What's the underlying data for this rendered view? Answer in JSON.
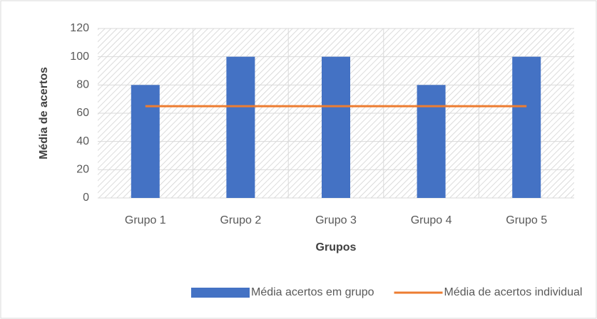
{
  "chart_data": {
    "type": "combo",
    "x_label": "Grupos",
    "y_label": "Média de acertos",
    "categories": [
      "Grupo 1",
      "Grupo 2",
      "Grupo 3",
      "Grupo 4",
      "Grupo 5"
    ],
    "series": [
      {
        "name": "Média acertos em grupo",
        "type": "bar",
        "color": "#4472c4",
        "values": [
          80,
          100,
          100,
          80,
          100
        ]
      },
      {
        "name": "Média de acertos individual",
        "type": "line",
        "color": "#ed7d31",
        "values": [
          65,
          65,
          65,
          65,
          65
        ]
      }
    ],
    "ylim": [
      0,
      120
    ],
    "yticks": [
      0,
      20,
      40,
      60,
      80,
      100,
      120
    ],
    "grid": true,
    "legend": "bottom"
  }
}
